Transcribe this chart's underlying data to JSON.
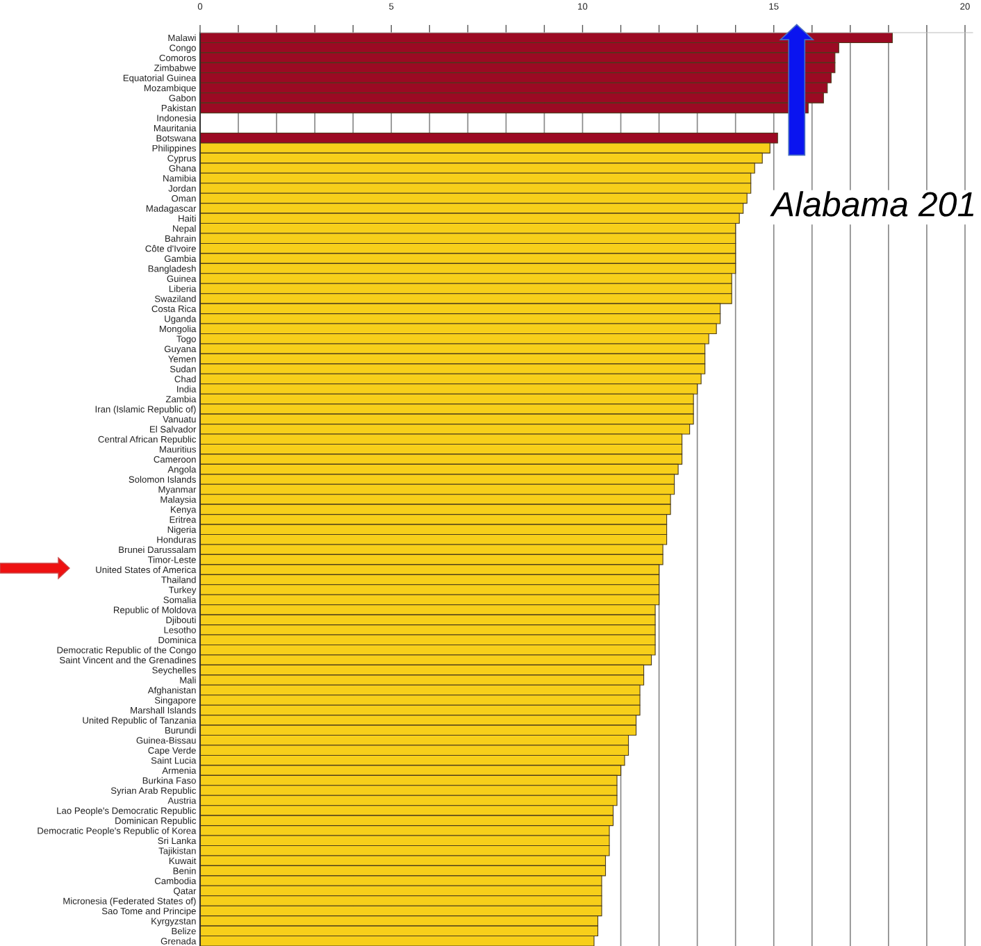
{
  "chart_data": {
    "type": "bar",
    "orientation": "horizontal",
    "categories": [
      "Malawi",
      "Congo",
      "Comoros",
      "Zimbabwe",
      "Equatorial Guinea",
      "Mozambique",
      "Gabon",
      "Pakistan",
      "Indonesia",
      "Mauritania",
      "Botswana",
      "Philippines",
      "Cyprus",
      "Ghana",
      "Namibia",
      "Jordan",
      "Oman",
      "Madagascar",
      "Haiti",
      "Nepal",
      "Bahrain",
      "Côte d'Ivoire",
      "Gambia",
      "Bangladesh",
      "Guinea",
      "Liberia",
      "Swaziland",
      "Costa Rica",
      "Uganda",
      "Mongolia",
      "Togo",
      "Guyana",
      "Yemen",
      "Sudan",
      "Chad",
      "India",
      "Zambia",
      "Iran (Islamic Republic of)",
      "Vanuatu",
      "El Salvador",
      "Central African Republic",
      "Mauritius",
      "Cameroon",
      "Angola",
      "Solomon Islands",
      "Myanmar",
      "Malaysia",
      "Kenya",
      "Eritrea",
      "Nigeria",
      "Honduras",
      "Brunei Darussalam",
      "Timor-Leste",
      "United States of America",
      "Thailand",
      "Turkey",
      "Somalia",
      "Republic of Moldova",
      "Djibouti",
      "Lesotho",
      "Dominica",
      "Democratic Republic of the Congo",
      "Saint Vincent and the Grenadines",
      "Seychelles",
      "Mali",
      "Afghanistan",
      "Singapore",
      "Marshall Islands",
      "United Republic of Tanzania",
      "Burundi",
      "Guinea-Bissau",
      "Cape Verde",
      "Saint Lucia",
      "Armenia",
      "Burkina Faso",
      "Syrian Arab Republic",
      "Austria",
      "Lao People's Democratic Republic",
      "Dominican Republic",
      "Democratic People's Republic of Korea",
      "Sri Lanka",
      "Tajikistan",
      "Kuwait",
      "Benin",
      "Cambodia",
      "Qatar",
      "Micronesia (Federated States of)",
      "Sao Tome and Principe",
      "Kyrgyzstan",
      "Belize",
      "Grenada"
    ],
    "values": [
      18.1,
      16.7,
      16.6,
      16.6,
      16.5,
      16.4,
      16.3,
      15.9,
      null,
      null,
      15.1,
      14.9,
      14.7,
      14.5,
      14.4,
      14.4,
      14.3,
      14.2,
      14.1,
      14.0,
      14.0,
      14.0,
      14.0,
      14.0,
      13.9,
      13.9,
      13.9,
      13.6,
      13.6,
      13.5,
      13.3,
      13.2,
      13.2,
      13.2,
      13.1,
      13.0,
      12.9,
      12.9,
      12.9,
      12.8,
      12.6,
      12.6,
      12.6,
      12.5,
      12.4,
      12.4,
      12.3,
      12.3,
      12.2,
      12.2,
      12.2,
      12.1,
      12.1,
      12.0,
      12.0,
      12.0,
      12.0,
      11.9,
      11.9,
      11.9,
      11.9,
      11.9,
      11.8,
      11.6,
      11.6,
      11.5,
      11.5,
      11.5,
      11.4,
      11.4,
      11.2,
      11.2,
      11.1,
      11.0,
      10.9,
      10.9,
      10.9,
      10.8,
      10.8,
      10.7,
      10.7,
      10.7,
      10.6,
      10.6,
      10.5,
      10.5,
      10.5,
      10.5,
      10.4,
      10.4,
      10.3
    ],
    "colors": [
      "#9b0a23",
      "#9b0a23",
      "#9b0a23",
      "#9b0a23",
      "#9b0a23",
      "#9b0a23",
      "#9b0a23",
      "#9b0a23",
      "#9b0a23",
      "#9b0a23",
      "#9b0a23",
      "#f7cf1a",
      "#f7cf1a",
      "#f7cf1a",
      "#f7cf1a",
      "#f7cf1a",
      "#f7cf1a",
      "#f7cf1a",
      "#f7cf1a",
      "#f7cf1a",
      "#f7cf1a",
      "#f7cf1a",
      "#f7cf1a",
      "#f7cf1a",
      "#f7cf1a",
      "#f7cf1a",
      "#f7cf1a",
      "#f7cf1a",
      "#f7cf1a",
      "#f7cf1a",
      "#f7cf1a",
      "#f7cf1a",
      "#f7cf1a",
      "#f7cf1a",
      "#f7cf1a",
      "#f7cf1a",
      "#f7cf1a",
      "#f7cf1a",
      "#f7cf1a",
      "#f7cf1a",
      "#f7cf1a",
      "#f7cf1a",
      "#f7cf1a",
      "#f7cf1a",
      "#f7cf1a",
      "#f7cf1a",
      "#f7cf1a",
      "#f7cf1a",
      "#f7cf1a",
      "#f7cf1a",
      "#f7cf1a",
      "#f7cf1a",
      "#f7cf1a",
      "#f7cf1a",
      "#f7cf1a",
      "#f7cf1a",
      "#f7cf1a",
      "#f7cf1a",
      "#f7cf1a",
      "#f7cf1a",
      "#f7cf1a",
      "#f7cf1a",
      "#f7cf1a",
      "#f7cf1a",
      "#f7cf1a",
      "#f7cf1a",
      "#f7cf1a",
      "#f7cf1a",
      "#f7cf1a",
      "#f7cf1a",
      "#f7cf1a",
      "#f7cf1a",
      "#f7cf1a",
      "#f7cf1a",
      "#f7cf1a",
      "#f7cf1a",
      "#f7cf1a",
      "#f7cf1a",
      "#f7cf1a",
      "#f7cf1a",
      "#f7cf1a",
      "#f7cf1a",
      "#f7cf1a",
      "#f7cf1a",
      "#f7cf1a",
      "#f7cf1a",
      "#f7cf1a",
      "#f7cf1a",
      "#f7cf1a",
      "#f7cf1a",
      "#f7cf1a"
    ],
    "xlim": [
      0,
      20.2
    ],
    "xticks": [
      0,
      {
        "value": 1,
        "label": null
      },
      {
        "value": 2,
        "label": null
      },
      {
        "value": 3,
        "label": null
      },
      {
        "value": 4,
        "label": null
      },
      5,
      {
        "value": 6,
        "label": null
      },
      {
        "value": 7,
        "label": null
      },
      {
        "value": 8,
        "label": null
      },
      {
        "value": 9,
        "label": null
      },
      10,
      {
        "value": 11,
        "label": null
      },
      {
        "value": 12,
        "label": null
      },
      {
        "value": 13,
        "label": null
      },
      {
        "value": 14,
        "label": null
      },
      15,
      {
        "value": 16,
        "label": null
      },
      {
        "value": 17,
        "label": null
      },
      {
        "value": 18,
        "label": null
      },
      {
        "value": 19,
        "label": null
      },
      20
    ],
    "grid": "x",
    "annotations": [
      "Alabama 201"
    ]
  }
}
